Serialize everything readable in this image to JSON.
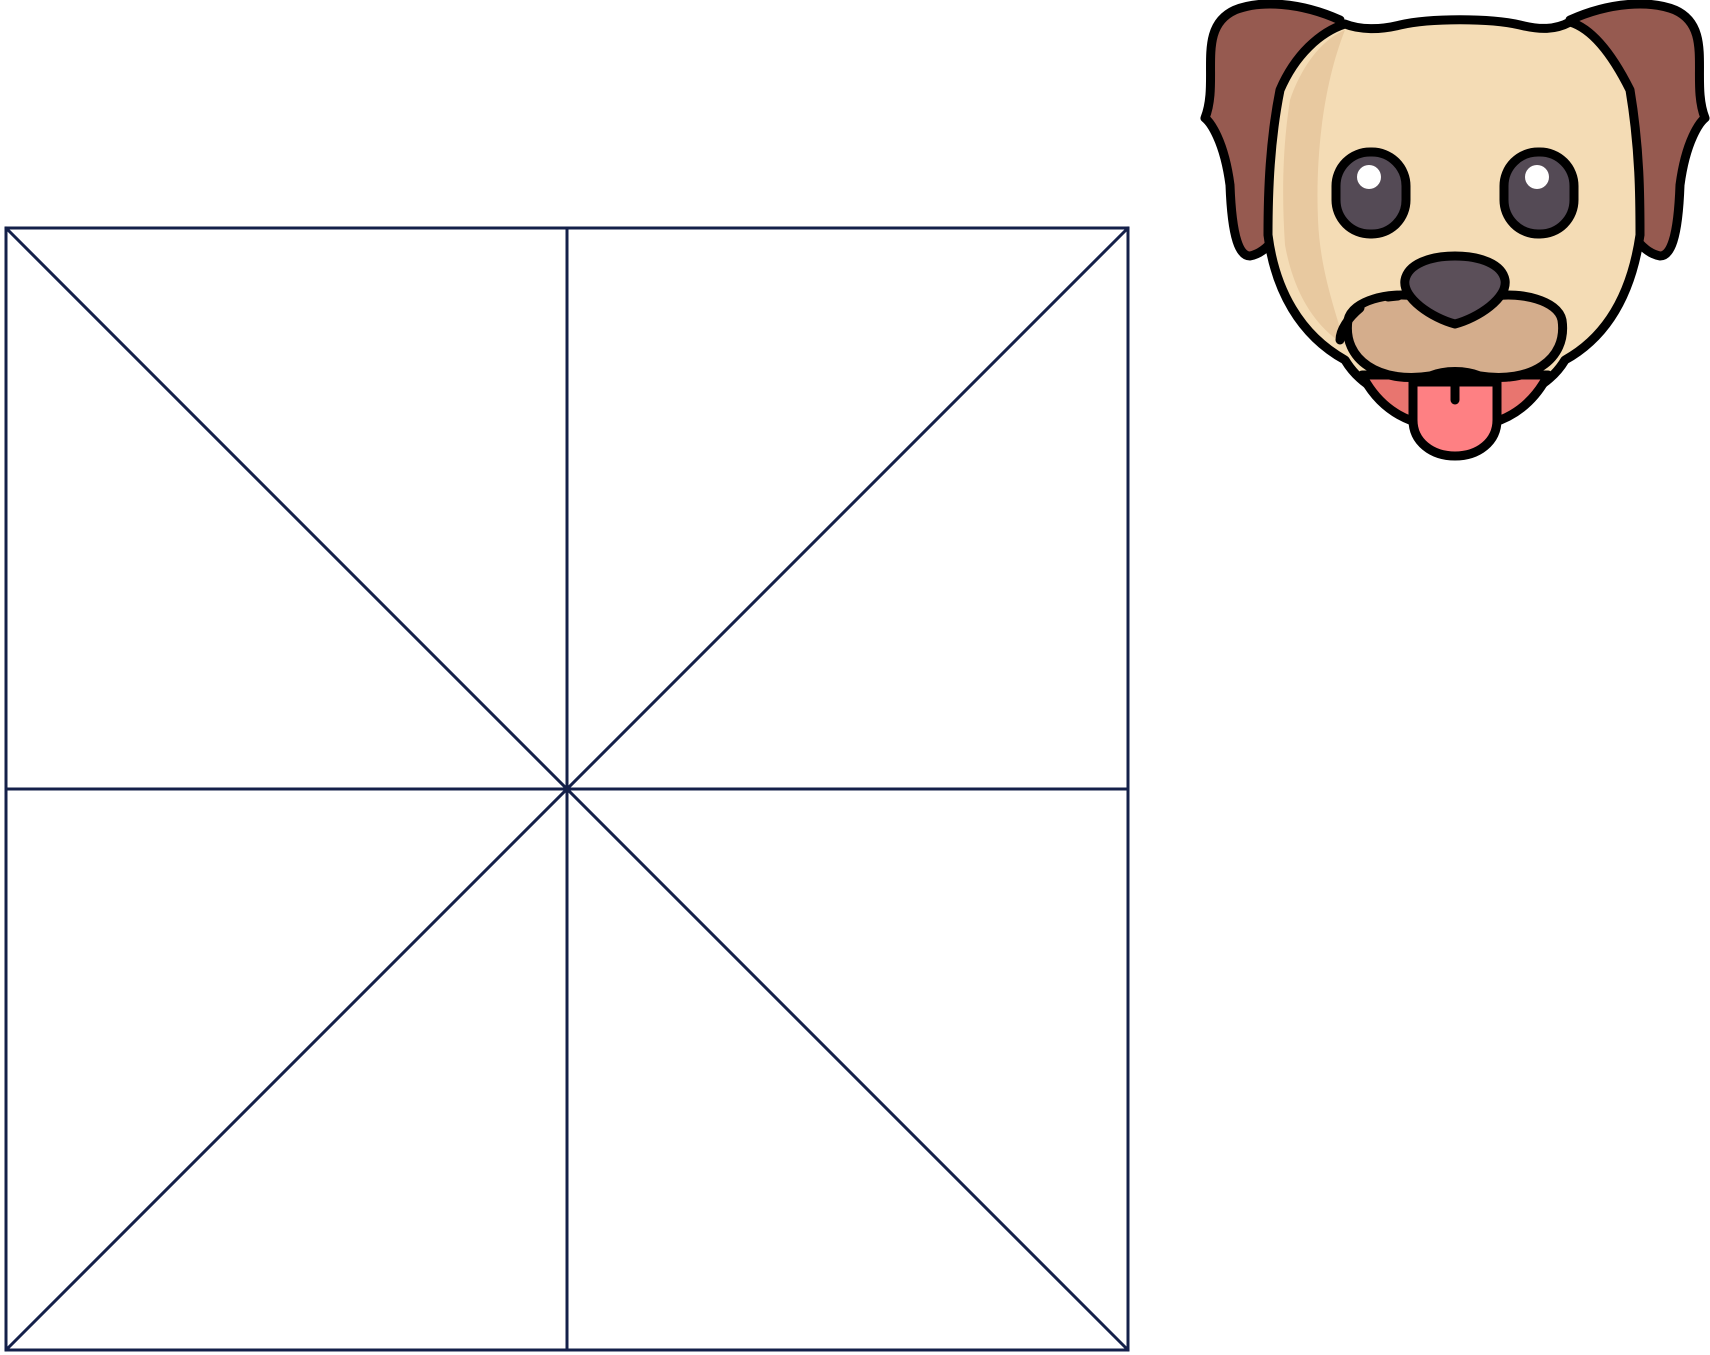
{
  "figure": {
    "description_free": true
  },
  "grid": {
    "line_color": "#14204a",
    "rows": 2,
    "cols": 2,
    "diagonals": true
  },
  "dog_icon": {
    "icon": "dog-face-icon",
    "colors": {
      "outline": "#000000",
      "face": "#f4dcb5",
      "face_shade": "#e8c9a0",
      "ear": "#965a50",
      "ear_dark": "#7c463f",
      "muzzle": "#d4ad8c",
      "nose": "#5b4f59",
      "eye": "#544a55",
      "eye_highlight": "#ffffff",
      "tongue": "#fe8083",
      "mouth": "#e8756f"
    }
  }
}
